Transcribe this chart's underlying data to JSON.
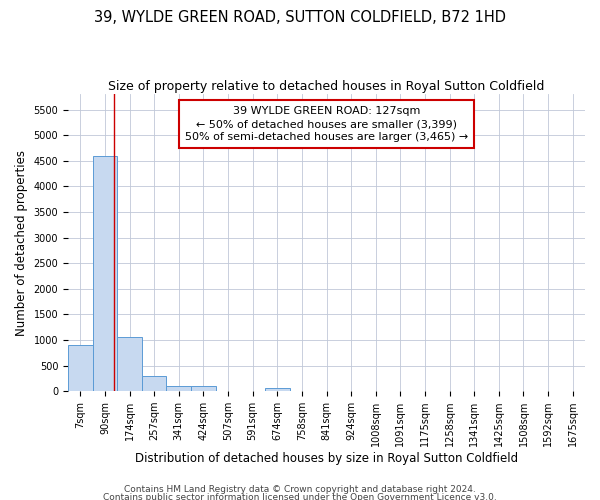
{
  "title": "39, WYLDE GREEN ROAD, SUTTON COLDFIELD, B72 1HD",
  "subtitle": "Size of property relative to detached houses in Royal Sutton Coldfield",
  "xlabel": "Distribution of detached houses by size in Royal Sutton Coldfield",
  "ylabel": "Number of detached properties",
  "categories": [
    "7sqm",
    "90sqm",
    "174sqm",
    "257sqm",
    "341sqm",
    "424sqm",
    "507sqm",
    "591sqm",
    "674sqm",
    "758sqm",
    "841sqm",
    "924sqm",
    "1008sqm",
    "1091sqm",
    "1175sqm",
    "1258sqm",
    "1341sqm",
    "1425sqm",
    "1508sqm",
    "1592sqm",
    "1675sqm"
  ],
  "values": [
    900,
    4600,
    1060,
    300,
    100,
    100,
    0,
    0,
    55,
    0,
    0,
    0,
    0,
    0,
    0,
    0,
    0,
    0,
    0,
    0,
    0
  ],
  "bar_color": "#c7d9f0",
  "bar_edge_color": "#5b9bd5",
  "annotation_text": "39 WYLDE GREEN ROAD: 127sqm\n← 50% of detached houses are smaller (3,399)\n50% of semi-detached houses are larger (3,465) →",
  "annotation_box_color": "#ffffff",
  "annotation_box_edge_color": "#cc0000",
  "vline_color": "#cc0000",
  "vline_x": 1.35,
  "ylim": [
    0,
    5800
  ],
  "yticks": [
    0,
    500,
    1000,
    1500,
    2000,
    2500,
    3000,
    3500,
    4000,
    4500,
    5000,
    5500
  ],
  "footer1": "Contains HM Land Registry data © Crown copyright and database right 2024.",
  "footer2": "Contains public sector information licensed under the Open Government Licence v3.0.",
  "bg_color": "#ffffff",
  "grid_color": "#c0c8d8",
  "title_fontsize": 10.5,
  "subtitle_fontsize": 9,
  "axis_label_fontsize": 8.5,
  "tick_fontsize": 7,
  "annot_fontsize": 8,
  "footer_fontsize": 6.5
}
